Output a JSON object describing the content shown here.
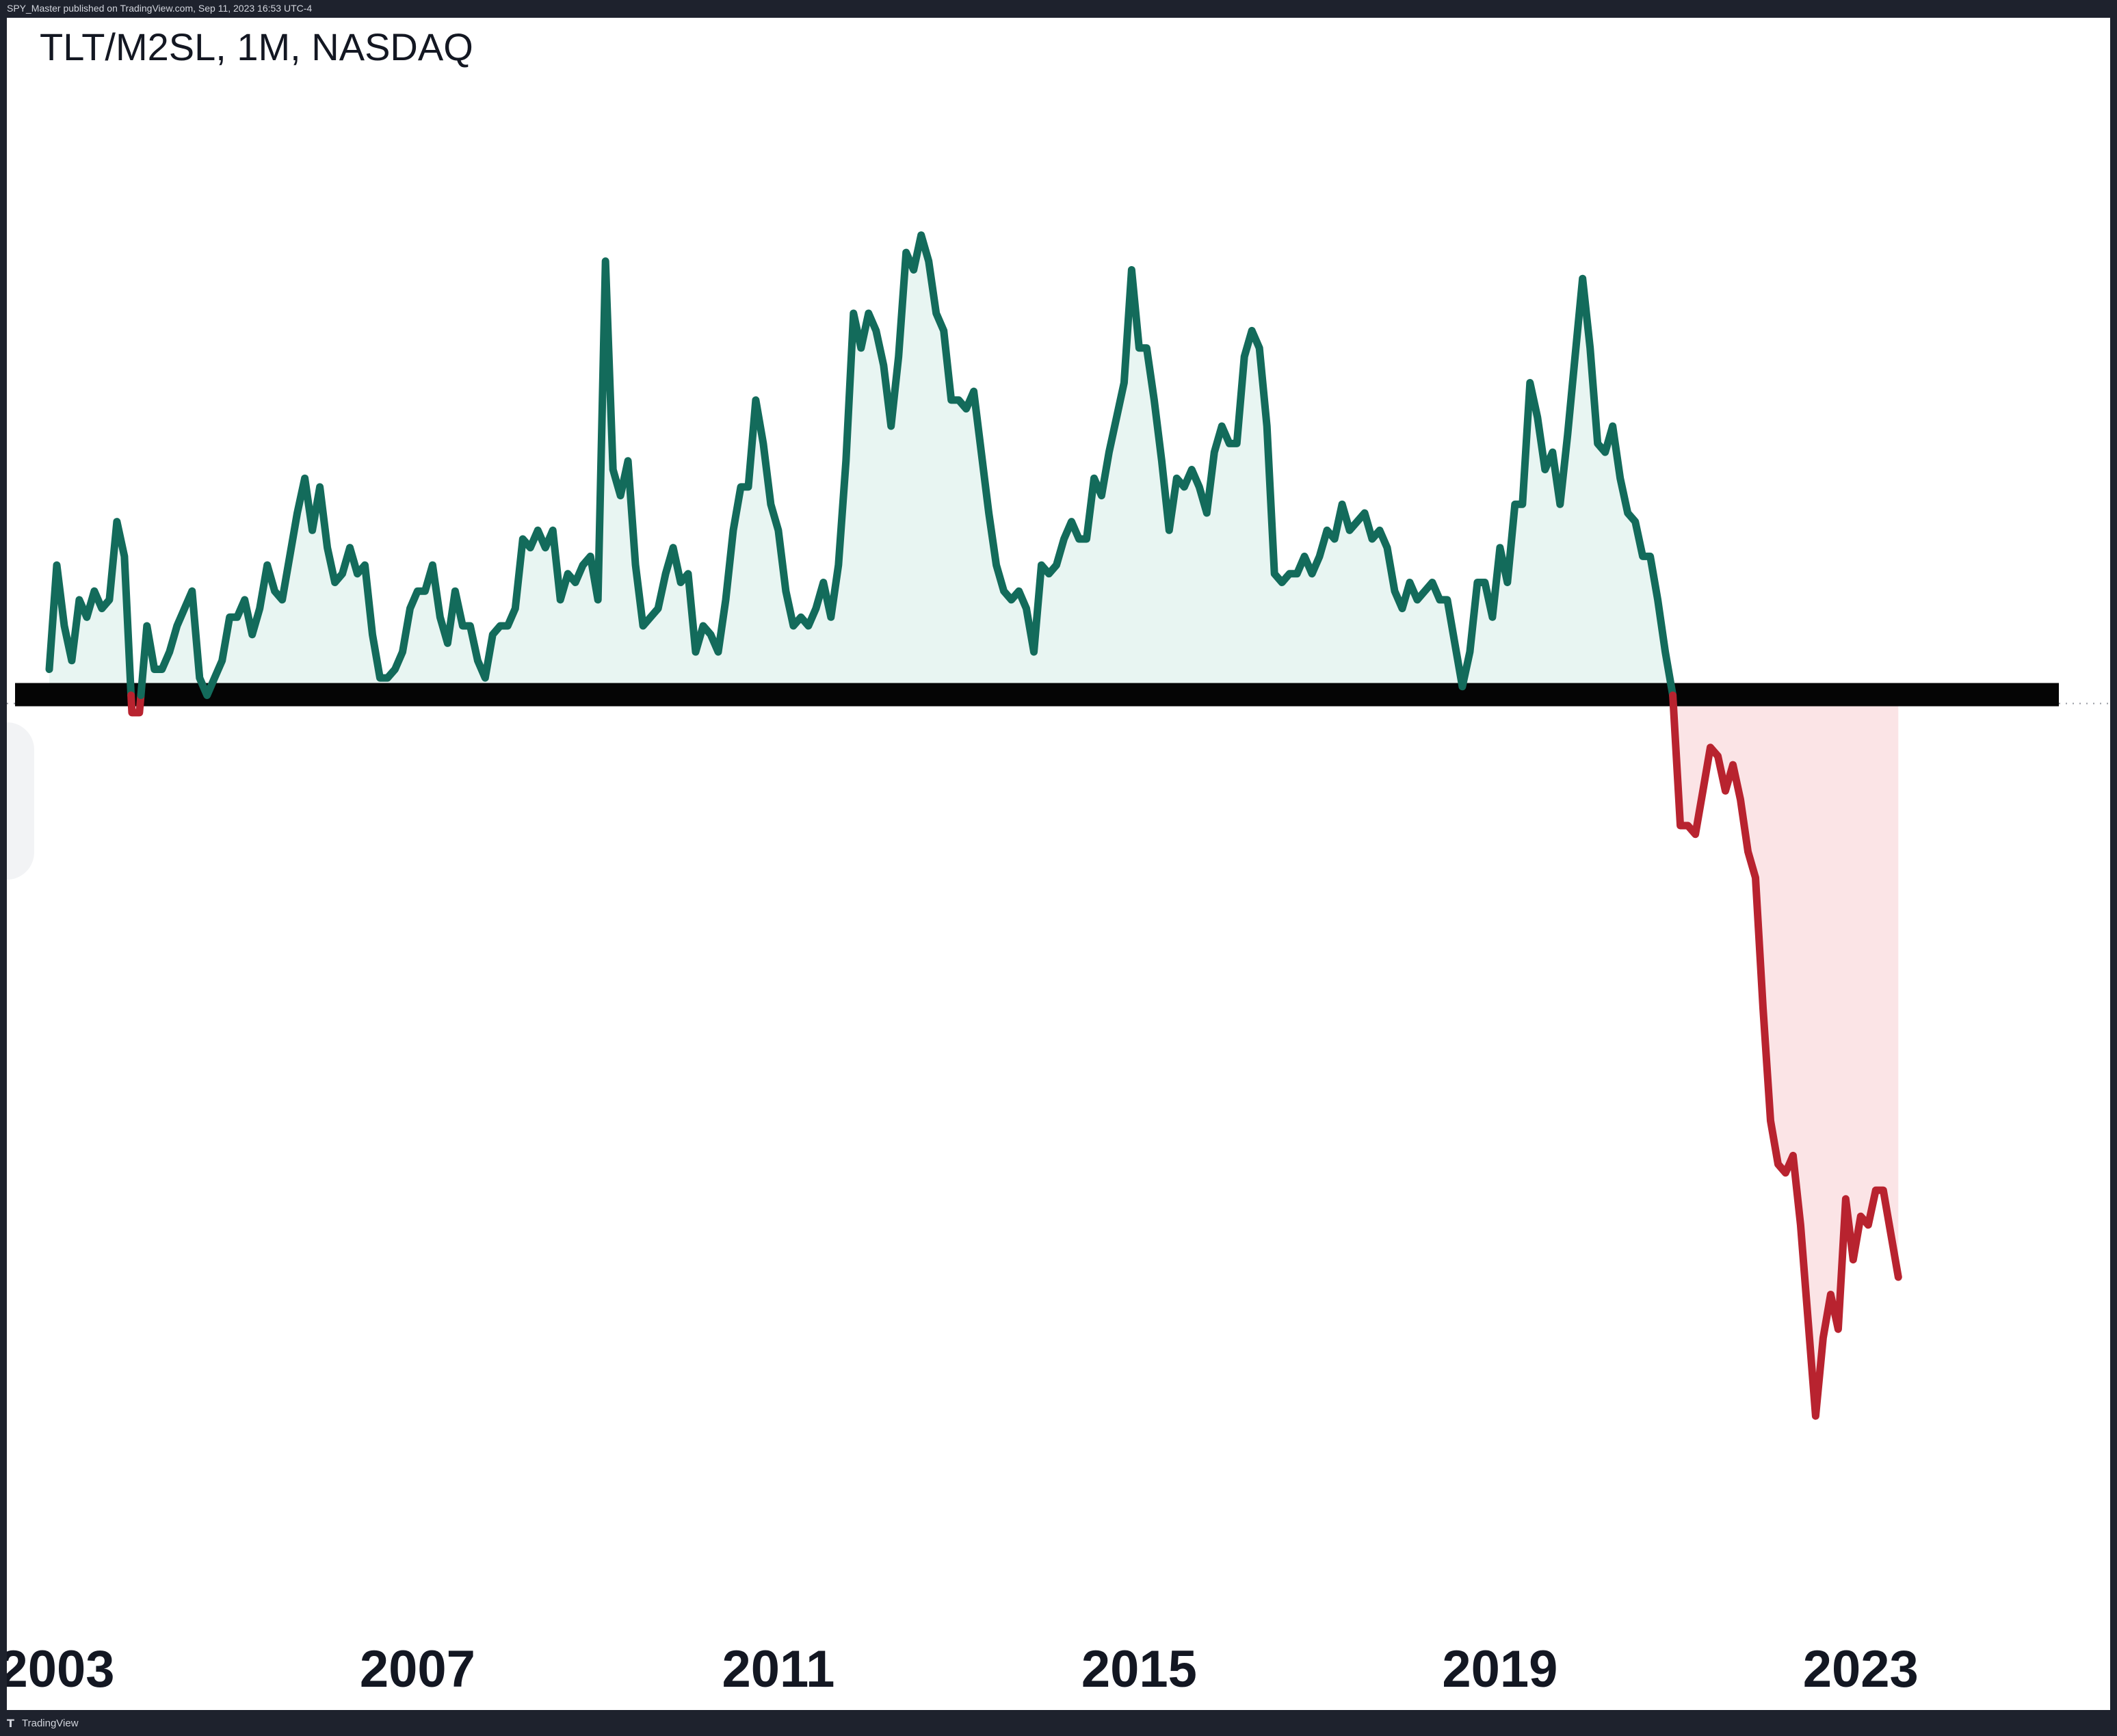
{
  "header": {
    "publisher_text": "SPY_Master published on TradingView.com, Sep 11, 2023 16:53 UTC-4"
  },
  "footer": {
    "brand_label": "TradingView",
    "brand_icon": "tradingview-logo-icon"
  },
  "colors": {
    "above_line": "#136b5b",
    "above_fill": "#e8f5f2",
    "below_line": "#b8232f",
    "below_fill": "#fbe4e6",
    "support_band": "#050505",
    "baseline_dots": "#9598a1"
  },
  "chart_data": {
    "type": "area",
    "title": "TLT/M2SL, 1M, NASDAQ",
    "xlabel": "",
    "ylabel": "",
    "x_ticks": [
      "2003",
      "2007",
      "2011",
      "2015",
      "2019",
      "2023"
    ],
    "xlim": [
      "2002-10",
      "2025-07"
    ],
    "ylim": [
      -100,
      67
    ],
    "grid": false,
    "legend": "none",
    "baseline": 0,
    "baseline_label": "",
    "note": "Values are estimated relative to the horizontal baseline (0); the chart prints no y-axis scale.",
    "series": [
      {
        "start": "2002-12",
        "frequency": "monthly",
        "values": [
          3,
          15,
          8,
          4,
          11,
          9,
          12,
          10,
          11,
          20,
          16,
          -2,
          -2,
          8,
          3,
          3,
          5,
          8,
          10,
          12,
          2,
          0,
          2,
          4,
          9,
          9,
          11,
          7,
          10,
          15,
          12,
          11,
          16,
          21,
          25,
          19,
          24,
          17,
          13,
          14,
          17,
          14,
          15,
          7,
          2,
          2,
          3,
          5,
          10,
          12,
          12,
          15,
          9,
          6,
          12,
          8,
          8,
          4,
          2,
          7,
          8,
          8,
          10,
          18,
          17,
          19,
          17,
          19,
          11,
          14,
          13,
          15,
          16,
          11,
          50,
          26,
          23,
          27,
          15,
          8,
          9,
          10,
          14,
          17,
          13,
          14,
          5,
          8,
          7,
          5,
          11,
          19,
          24,
          24,
          34,
          29,
          22,
          19,
          12,
          8,
          9,
          8,
          10,
          13,
          9,
          15,
          27,
          44,
          40,
          44,
          42,
          38,
          31,
          39,
          51,
          49,
          53,
          50,
          44,
          42,
          34,
          34,
          33,
          35,
          28,
          21,
          15,
          12,
          11,
          12,
          10,
          5,
          15,
          14,
          15,
          18,
          20,
          18,
          18,
          25,
          23,
          28,
          32,
          36,
          49,
          40,
          40,
          34,
          27,
          19,
          25,
          24,
          26,
          24,
          21,
          28,
          31,
          29,
          29,
          39,
          42,
          40,
          31,
          14,
          13,
          14,
          14,
          16,
          14,
          16,
          19,
          18,
          22,
          19,
          20,
          21,
          18,
          19,
          17,
          12,
          10,
          13,
          11,
          12,
          13,
          11,
          11,
          6,
          1,
          5,
          13,
          13,
          9,
          17,
          13,
          22,
          22,
          36,
          32,
          26,
          28,
          22,
          30,
          39,
          48,
          40,
          29,
          28,
          31,
          25,
          21,
          20,
          16,
          16,
          11,
          5,
          0,
          -15,
          -15,
          -16,
          -11,
          -6,
          -7,
          -11,
          -8,
          -12,
          -18,
          -21,
          -36,
          -49,
          -54,
          -55,
          -53,
          -61,
          -72,
          -83,
          -74,
          -69,
          -73,
          -58,
          -65,
          -60,
          -61,
          -57,
          -57,
          -62,
          -67
        ]
      }
    ]
  }
}
